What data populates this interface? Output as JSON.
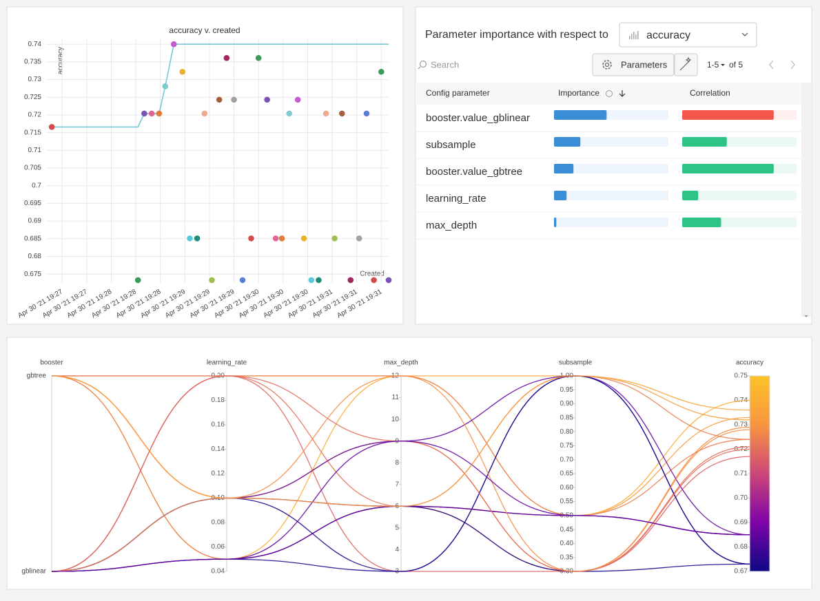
{
  "chart_data": [
    {
      "type": "scatter",
      "title": "accuracy v. created",
      "y_label": "accuracy",
      "x_label": "Created",
      "x": [
        11.6,
        81.8,
        86.9,
        93,
        99,
        104,
        111,
        118,
        124,
        130,
        136,
        142,
        148,
        154,
        160,
        167,
        174,
        180,
        187,
        194,
        199,
        205,
        212,
        217,
        223,
        229,
        235,
        242,
        248,
        255,
        262,
        268,
        274,
        280,
        286
      ],
      "values": [
        0.7166,
        0.6733,
        0.7204,
        0.7204,
        0.7204,
        0.7281,
        0.74,
        0.7322,
        0.6851,
        0.6851,
        0.7204,
        0.6733,
        0.7243,
        0.7361,
        0.7243,
        0.6733,
        0.6851,
        0.7361,
        0.7243,
        0.6851,
        0.6851,
        0.7204,
        0.7243,
        0.6851,
        0.6733,
        0.6733,
        0.7204,
        0.6851,
        0.7204,
        0.6733,
        0.6851,
        0.7204,
        0.6733,
        0.7322,
        0.6733
      ],
      "colors": [
        "#d44b4b",
        "#3a9a5b",
        "#7a52b3",
        "#e0669a",
        "#e07b39",
        "#7dcbd1",
        "#c65bd0",
        "#e7b02e",
        "#5bc8de",
        "#1e8c7e",
        "#eeab8c",
        "#9dbd50",
        "#a5613f",
        "#a3265c",
        "#a0a0a0",
        "#5b7fd6",
        "#d44b4b",
        "#3a9a5b",
        "#7a52b3",
        "#e0669a",
        "#e07b39",
        "#7dcbd1",
        "#c65bd0",
        "#e7b02e",
        "#5bc8de",
        "#1e8c7e",
        "#eeab8c",
        "#9dbd50",
        "#a5613f",
        "#a3265c",
        "#a0a0a0",
        "#5b7fd6",
        "#d44b4b",
        "#3a9a5b",
        "#7a52b3"
      ],
      "line": true,
      "line_color": "#78c7d6",
      "xlim": [
        7,
        286
      ],
      "ylim": [
        0.6725,
        0.7414
      ],
      "xticks": [
        {
          "value": 20,
          "label": "Apr 30 '21 19:27"
        },
        {
          "value": 40,
          "label": "Apr 30 '21 19:27"
        },
        {
          "value": 60,
          "label": "Apr 30 '21 19:28"
        },
        {
          "value": 80,
          "label": "Apr 30 '21 19:28"
        },
        {
          "value": 100,
          "label": "Apr 30 '21 19:28"
        },
        {
          "value": 120,
          "label": "Apr 30 '21 19:29"
        },
        {
          "value": 140,
          "label": "Apr 30 '21 19:29"
        },
        {
          "value": 160,
          "label": "Apr 30 '21 19:29"
        },
        {
          "value": 180,
          "label": "Apr 30 '21 19:30"
        },
        {
          "value": 200,
          "label": "Apr 30 '21 19:30"
        },
        {
          "value": 220,
          "label": "Apr 30 '21 19:30"
        },
        {
          "value": 240,
          "label": "Apr 30 '21 19:31"
        },
        {
          "value": 260,
          "label": "Apr 30 '21 19:31"
        },
        {
          "value": 280,
          "label": "Apr 30 '21 19:31"
        }
      ],
      "yticks": [
        0.675,
        0.68,
        0.685,
        0.69,
        0.695,
        0.7,
        0.705,
        0.71,
        0.715,
        0.72,
        0.725,
        0.73,
        0.735,
        0.74
      ],
      "grid": true
    },
    {
      "type": "parallel",
      "dimensions": [
        {
          "name": "booster",
          "categories": [
            "gbtree",
            "gblinear"
          ],
          "values": [
            "gbtree",
            "gbtree",
            "gbtree",
            "gbtree",
            "gbtree",
            "gblinear",
            "gblinear",
            "gblinear",
            "gblinear",
            "gblinear",
            "gblinear",
            "gblinear",
            "gblinear",
            "gblinear",
            "gbtree",
            "gblinear",
            "gblinear",
            "gbtree"
          ]
        },
        {
          "name": "learning_rate",
          "lim": [
            0.04,
            0.2
          ],
          "ticks": [
            {
              "value": 0.2,
              "label": "0.20"
            },
            0.18,
            0.16,
            0.14,
            0.12,
            {
              "value": 0.1,
              "label": "0.10"
            },
            0.08,
            0.06,
            0.04
          ],
          "values": [
            0.2,
            0.1,
            0.1,
            0.05,
            0.05,
            0.2,
            0.2,
            0.2,
            0.1,
            0.1,
            0.05,
            0.05,
            0.1,
            0.05,
            0.2,
            0.1,
            0.05,
            0.1
          ]
        },
        {
          "name": "max_depth",
          "lim": [
            3,
            12
          ],
          "ticks": [
            12,
            11,
            10,
            9,
            8,
            7,
            6,
            5,
            4,
            3
          ],
          "values": [
            12,
            6,
            9,
            12,
            6,
            6,
            12,
            3,
            9,
            6,
            3,
            6,
            3,
            6,
            9,
            12,
            9,
            6
          ]
        },
        {
          "name": "subsample",
          "lim": [
            0.3,
            1
          ],
          "ticks": [
            {
              "value": 1,
              "label": "1.00"
            },
            0.95,
            {
              "value": 0.9,
              "label": "0.90"
            },
            0.85,
            {
              "value": 0.8,
              "label": "0.80"
            },
            0.75,
            {
              "value": 0.7,
              "label": "0.70"
            },
            0.65,
            {
              "value": 0.6,
              "label": "0.60"
            },
            0.55,
            {
              "value": 0.5,
              "label": "0.50"
            },
            0.45,
            {
              "value": 0.4,
              "label": "0.40"
            },
            0.35,
            {
              "value": 0.3,
              "label": "0.30"
            }
          ],
          "values": [
            1,
            0.5,
            0.3,
            0.5,
            1,
            0.3,
            0.5,
            0.3,
            1,
            0.5,
            1,
            0.3,
            1,
            0.5,
            0.3,
            0.3,
            0.5,
            1
          ]
        },
        {
          "name": "accuracy",
          "lim": [
            0.67,
            0.75
          ],
          "ticks": [
            0.75,
            0.74,
            0.73,
            0.72,
            0.71,
            {
              "value": 0.7,
              "label": "0.70"
            },
            0.69,
            0.68,
            0.67
          ],
          "values": [
            0.736,
            0.733,
            0.729,
            0.74,
            0.724,
            0.721,
            0.724,
            0.717,
            0.685,
            0.685,
            0.673,
            0.673,
            0.673,
            0.685,
            0.72,
            0.728,
            0.685,
            0.732
          ],
          "colorscale": [
            "#0d0887",
            "#7e03a8",
            "#cc4778",
            "#f89540",
            "#fdc328"
          ]
        }
      ]
    }
  ],
  "importance_panel": {
    "title": "Parameter importance with respect to",
    "metric": "accuracy",
    "search_placeholder": "Search",
    "button": "Parameters",
    "page_range": "1-5",
    "page_total": "of 5",
    "columns": [
      "Config parameter",
      "Importance",
      "Correlation"
    ],
    "importance_color": "#3a8ed8",
    "positive_color": "#2ec486",
    "negative_color": "#f5554a",
    "rows": [
      {
        "name": "booster.value_gblinear",
        "importance": 0.46,
        "correlation": -0.8
      },
      {
        "name": "subsample",
        "importance": 0.23,
        "correlation": 0.39
      },
      {
        "name": "booster.value_gbtree",
        "importance": 0.17,
        "correlation": 0.8
      },
      {
        "name": "learning_rate",
        "importance": 0.11,
        "correlation": 0.14
      },
      {
        "name": "max_depth",
        "importance": 0.02,
        "correlation": 0.34
      }
    ]
  }
}
